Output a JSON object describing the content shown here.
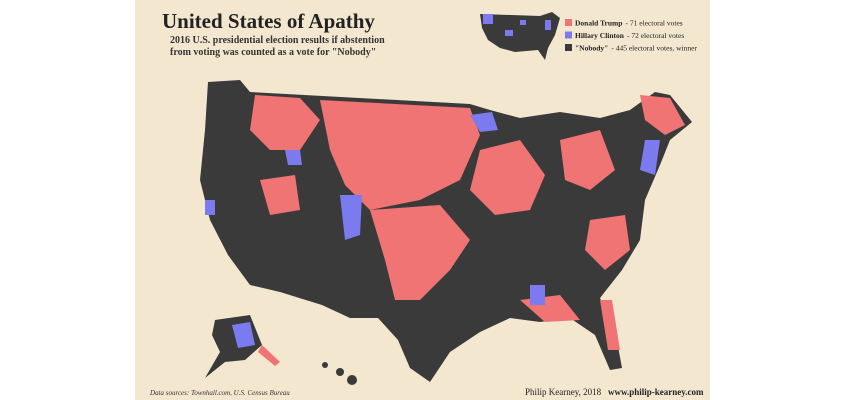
{
  "header": {
    "title": "United States of Apathy",
    "subtitle": [
      "2016 U.S. presidential election results if abstention",
      "from voting was counted as a vote for \"Nobody\""
    ]
  },
  "legend": [
    {
      "name": "Donald Trump",
      "detail": "- 71 electoral votes",
      "color": "#f07474"
    },
    {
      "name": "Hillary Clinton",
      "detail": "- 72 electoral votes",
      "color": "#7b7bef"
    },
    {
      "name": "\"Nobody\"",
      "detail": "- 445 electoral votes, winner",
      "color": "#3a3a3a"
    }
  ],
  "footer": {
    "sources": "Data sources:  Townhall.com, U.S. Census Bureau",
    "author": "Philip Kearney, 2018",
    "url": "www.philip-kearney.com"
  }
}
